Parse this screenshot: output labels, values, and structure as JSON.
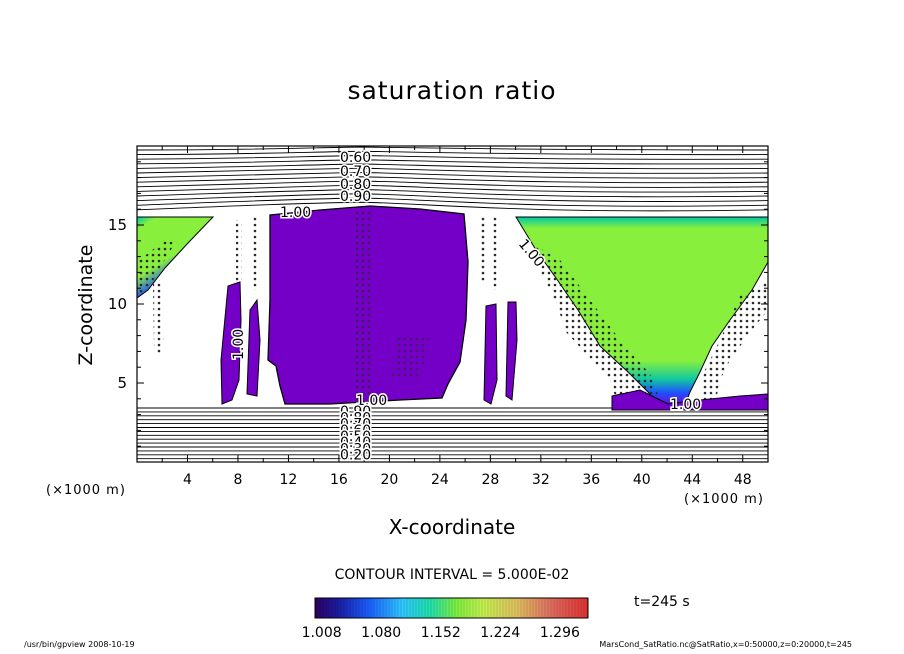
{
  "chart_data": {
    "type": "contour",
    "title": "saturation ratio",
    "xlabel": "X-coordinate",
    "ylabel": "Z-coordinate",
    "x_unit_label": "(×1000 m)",
    "y_unit_label": "(×1000 m)",
    "xlim": [
      0,
      50
    ],
    "ylim": [
      0,
      20
    ],
    "x_ticks": [
      4,
      8,
      12,
      16,
      20,
      24,
      28,
      32,
      36,
      40,
      44,
      48
    ],
    "y_ticks": [
      5,
      10,
      15
    ],
    "contour_labels_upper": [
      "0.60",
      "0.70",
      "0.80",
      "0.90",
      "1.00"
    ],
    "contour_labels_lower": [
      "1.00",
      "0.90",
      "0.80",
      "0.70",
      "0.60",
      "0.50",
      "0.40",
      "0.30",
      "0.20"
    ],
    "inline_labels": [
      "1.00",
      "1.00",
      "1.00",
      "1.00"
    ],
    "contour_interval": "CONTOUR INTERVAL = 5.000E-02",
    "colorbar_ticks": [
      "1.008",
      "1.080",
      "1.152",
      "1.224",
      "1.296"
    ],
    "colorbar_range": [
      1.0,
      1.33
    ],
    "time": "t=245 s",
    "supersaturated_regions": [
      {
        "name": "left-wedge",
        "x": [
          0,
          6
        ],
        "z": [
          11,
          15.7
        ],
        "peak": 1.16
      },
      {
        "name": "central-plume",
        "x": [
          11,
          26
        ],
        "z": [
          4,
          16
        ],
        "peak": 1.02
      },
      {
        "name": "right-cone",
        "x": [
          31,
          50
        ],
        "z": [
          3.5,
          15.7
        ],
        "peak": 1.16
      }
    ]
  },
  "footer": {
    "left": "/usr/bin/gpview   2008-10-19",
    "right": "MarsCond_SatRatio.nc@SatRatio,x=0:50000,z=0:20000,t=245"
  },
  "colors": {
    "purple": "#7400c8",
    "green": "#88f03c",
    "teal": "#10c8a0",
    "blue": "#2050ff"
  }
}
